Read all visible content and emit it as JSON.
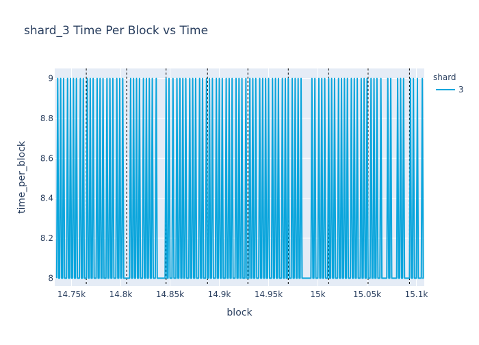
{
  "chart_data": {
    "type": "line",
    "title": "shard_3 Time Per Block vs Time",
    "xlabel": "block",
    "ylabel": "time_per_block",
    "xlim": [
      14733,
      15108
    ],
    "ylim": [
      7.96,
      9.05
    ],
    "xticks": [
      {
        "value": 14750,
        "label": "14.75k"
      },
      {
        "value": 14800,
        "label": "14.8k"
      },
      {
        "value": 14850,
        "label": "14.85k"
      },
      {
        "value": 14900,
        "label": "14.9k"
      },
      {
        "value": 14950,
        "label": "14.95k"
      },
      {
        "value": 15000,
        "label": "15k"
      },
      {
        "value": 15050,
        "label": "15.05k"
      },
      {
        "value": 15100,
        "label": "15.1k"
      }
    ],
    "yticks": [
      {
        "value": 8,
        "label": "8"
      },
      {
        "value": 8.2,
        "label": "8.2"
      },
      {
        "value": 8.4,
        "label": "8.4"
      },
      {
        "value": 8.6,
        "label": "8.6"
      },
      {
        "value": 8.8,
        "label": "8.8"
      },
      {
        "value": 9,
        "label": "9"
      }
    ],
    "vlines": [
      14765,
      14806,
      14846,
      14888,
      14929,
      14970,
      15011,
      15051,
      15093
    ],
    "grid": true,
    "legend": {
      "title": "shard",
      "placement": "right"
    },
    "series": [
      {
        "name": "3",
        "color": "#0aa5dc",
        "x_start": 14735,
        "x_end": 15106,
        "low": 8,
        "high": 9,
        "spike_blocks": [
          14736,
          14739,
          14742,
          14746,
          14749,
          14752,
          14755,
          14759,
          14762,
          14766,
          14769,
          14772,
          14776,
          14779,
          14782,
          14786,
          14789,
          14792,
          14796,
          14799,
          14802,
          14810,
          14813,
          14816,
          14819,
          14823,
          14826,
          14829,
          14832,
          14836,
          14846,
          14849,
          14853,
          14857,
          14860,
          14863,
          14866,
          14870,
          14873,
          14876,
          14880,
          14883,
          14887,
          14890,
          14893,
          14897,
          14900,
          14903,
          14907,
          14910,
          14913,
          14917,
          14920,
          14923,
          14927,
          14931,
          14934,
          14937,
          14941,
          14944,
          14947,
          14950,
          14954,
          14957,
          14960,
          14964,
          14967,
          14970,
          14974,
          14977,
          14980,
          14983,
          14994,
          14997,
          15001,
          15004,
          15007,
          15011,
          15014,
          15017,
          15021,
          15024,
          15027,
          15030,
          15034,
          15037,
          15040,
          15044,
          15047,
          15050,
          15054,
          15057,
          15060,
          15064,
          15071,
          15074,
          15081,
          15084,
          15087,
          15094,
          15097,
          15101,
          15106
        ]
      }
    ]
  }
}
